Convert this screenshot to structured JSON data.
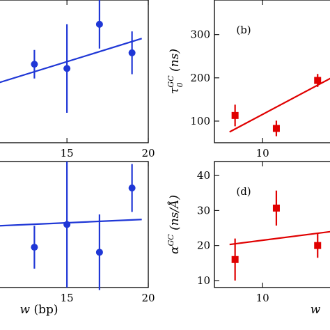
{
  "chart_data": [
    {
      "id": "a",
      "type": "scatter",
      "panel_label": "",
      "color": "#1f37d6",
      "marker": "circle",
      "xlabel": "",
      "ylabel": "",
      "xlim": [
        10.8,
        20
      ],
      "ylim": [
        0,
        100
      ],
      "xticks": [
        15,
        20
      ],
      "xticklabels": [
        "15",
        "20"
      ],
      "yticks": [],
      "points": [
        {
          "x": 13.0,
          "y": 55,
          "err_low": 10,
          "err_high": 10
        },
        {
          "x": 15.0,
          "y": 52,
          "err_low": 31,
          "err_high": 31
        },
        {
          "x": 17.0,
          "y": 83,
          "err_low": 17,
          "err_high": 17
        },
        {
          "x": 19.0,
          "y": 63,
          "err_low": 15,
          "err_high": 15
        }
      ],
      "fit": {
        "x": [
          10.8,
          19.6
        ],
        "y": [
          42,
          73
        ]
      }
    },
    {
      "id": "b",
      "type": "scatter",
      "panel_label": "(b)",
      "color": "#e00000",
      "marker": "square",
      "xlabel": "",
      "ylabel": "τ_0^GC (ns)",
      "xlim": [
        6.5,
        15
      ],
      "ylim": [
        50,
        380
      ],
      "xticks": [
        10
      ],
      "xticklabels": [
        "10"
      ],
      "yticks": [
        100,
        200,
        300
      ],
      "yticklabels": [
        "100",
        "200",
        "300"
      ],
      "points": [
        {
          "x": 8.0,
          "y": 113,
          "err_low": 25,
          "err_high": 25
        },
        {
          "x": 11.0,
          "y": 83,
          "err_low": 18,
          "err_high": 18
        },
        {
          "x": 14.0,
          "y": 194,
          "err_low": 15,
          "err_high": 15
        }
      ],
      "fit": {
        "x": [
          7.6,
          15
        ],
        "y": [
          75,
          200
        ]
      }
    },
    {
      "id": "c",
      "type": "scatter",
      "panel_label": "",
      "color": "#1f37d6",
      "marker": "circle",
      "xlabel": "w (bp)",
      "ylabel": "",
      "xlim": [
        10.8,
        20
      ],
      "ylim": [
        0,
        100
      ],
      "xticks": [
        15,
        20
      ],
      "xticklabels": [
        "15",
        "20"
      ],
      "yticks": [],
      "points": [
        {
          "x": 13.0,
          "y": 32,
          "err_low": 17,
          "err_high": 17
        },
        {
          "x": 15.0,
          "y": 50,
          "err_low": 50,
          "err_high": 50
        },
        {
          "x": 17.0,
          "y": 28,
          "err_low": 30,
          "err_high": 30
        },
        {
          "x": 19.0,
          "y": 79,
          "err_low": 19,
          "err_high": 19
        }
      ],
      "fit": {
        "x": [
          10.8,
          19.6
        ],
        "y": [
          49,
          54
        ]
      }
    },
    {
      "id": "d",
      "type": "scatter",
      "panel_label": "(d)",
      "color": "#e00000",
      "marker": "square",
      "xlabel": "w",
      "ylabel": "α^GC (ns/Å)",
      "xlim": [
        6.5,
        15
      ],
      "ylim": [
        8,
        44
      ],
      "xticks": [
        10
      ],
      "xticklabels": [
        "10"
      ],
      "yticks": [
        10,
        20,
        30,
        40
      ],
      "yticklabels": [
        "10",
        "20",
        "30",
        "40"
      ],
      "points": [
        {
          "x": 8.0,
          "y": 16,
          "err_low": 6,
          "err_high": 6
        },
        {
          "x": 11.0,
          "y": 30.7,
          "err_low": 5,
          "err_high": 5
        },
        {
          "x": 14.0,
          "y": 20,
          "err_low": 3.5,
          "err_high": 3.5
        }
      ],
      "fit": {
        "x": [
          7.6,
          15
        ],
        "y": [
          20.3,
          24
        ]
      }
    }
  ]
}
